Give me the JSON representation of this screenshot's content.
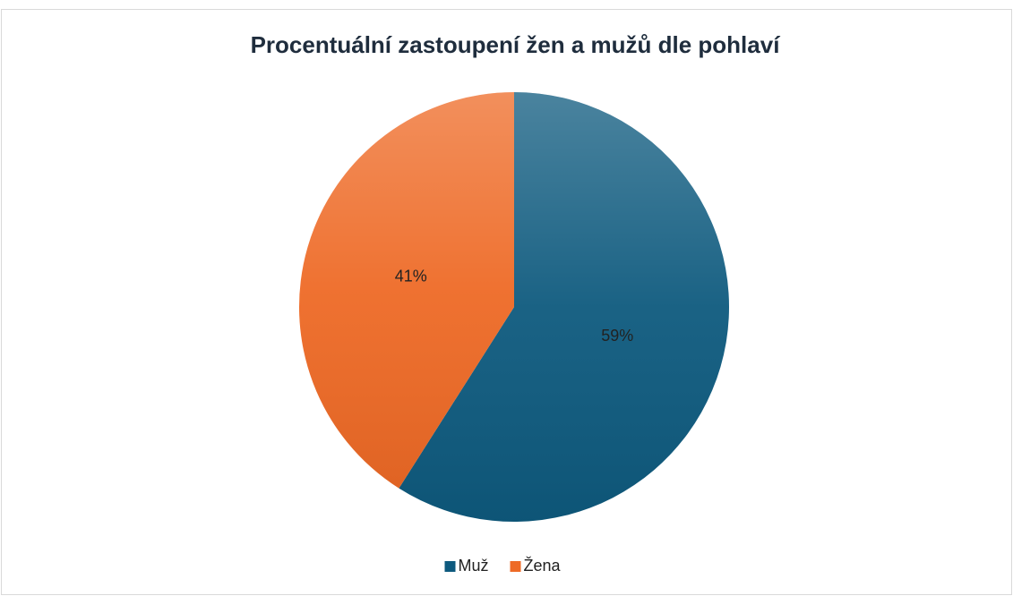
{
  "chart_data": {
    "type": "pie",
    "title": "Procentuální zastoupení žen a mužů dle pohlaví",
    "categories": [
      "Muž",
      "Žena"
    ],
    "values": [
      59,
      41
    ],
    "value_labels": [
      "59%",
      "41%"
    ],
    "colors": [
      "#0e5a7e",
      "#ee6a26"
    ],
    "legend": "bottom"
  }
}
